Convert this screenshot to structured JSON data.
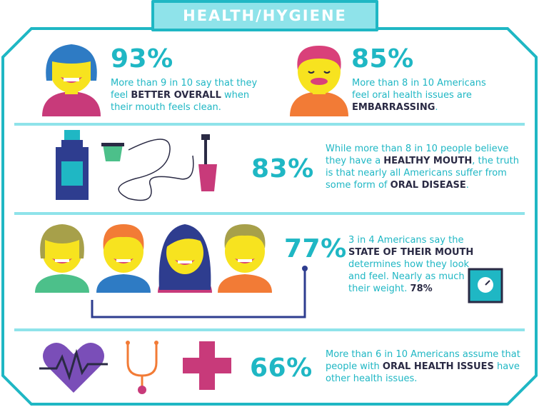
{
  "colors": {
    "teal": "#1fb7c4",
    "light_teal": "#8fe3ea",
    "navy": "#2e3d8f",
    "magenta": "#c83a7a",
    "orange": "#f27b36",
    "yellow": "#f7e31f",
    "dark": "#2a2a44"
  },
  "header": {
    "title": "HEALTH/HYGIENE"
  },
  "sections": {
    "clean": {
      "percent": "93%",
      "pre": "More than 9 in 10 say that they feel ",
      "bold": "BETTER OVERALL",
      "post": " when their mouth feels clean.",
      "icon": "smiling-person-icon"
    },
    "embarrassing": {
      "percent": "85%",
      "pre": "More than 8 in 10 Americans feel oral health issues are ",
      "bold": "EMBARRASSING",
      "post": ".",
      "icon": "embarrassed-person-icon"
    },
    "healthy": {
      "percent": "83%",
      "pre1": "While more than 8 in 10 people believe they have a ",
      "bold1": "HEALTHY MOUTH",
      "mid": ", the truth is that nearly all Americans suffer from some form of ",
      "bold2": "ORAL DISEASE",
      "post": ".",
      "icons": [
        "mouthwash-icon",
        "cup-icon",
        "floss-icon",
        "toothbrush-icon"
      ]
    },
    "state": {
      "percent": "77%",
      "pre": "3 in 4 Americans say the ",
      "bold": "STATE OF THEIR MOUTH",
      "post": " determines how they look and feel. Nearly as much as their weight.",
      "weight_percent": "78%",
      "icons": [
        "group-of-people-icon",
        "scale-icon"
      ]
    },
    "other": {
      "percent": "66%",
      "pre": "More than 6 in 10 Americans assume that people with ",
      "bold": "ORAL HEALTH ISSUES",
      "post": " have other health issues.",
      "icons": [
        "heartbeat-icon",
        "stethoscope-icon",
        "medical-cross-icon"
      ]
    }
  }
}
